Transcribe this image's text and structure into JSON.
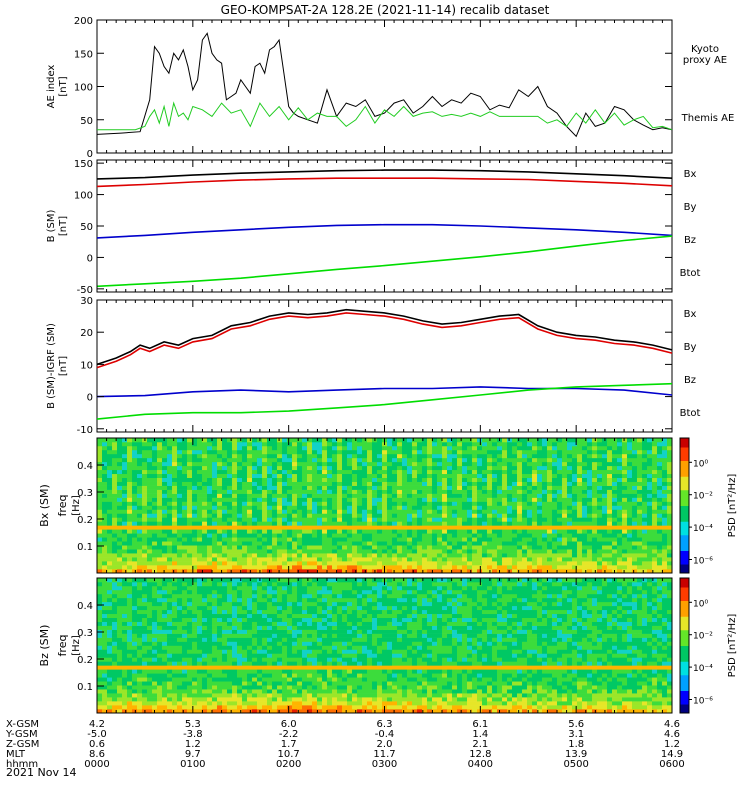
{
  "title": "GEO-KOMPSAT-2A 128.2E (2021-11-14) recalib dataset",
  "date_label": "2021 Nov 14",
  "colors": {
    "black": "#000000",
    "red": "#dd0000",
    "green": "#00dd00",
    "blue": "#0000cc",
    "kyoto": "#22cc22"
  },
  "ephemeris": {
    "labels": [
      "X-GSM",
      "Y-GSM",
      "Z-GSM",
      "MLT",
      "hhmm"
    ],
    "columns": [
      [
        "4.2",
        "-5.0",
        "0.6",
        "8.6",
        "0000"
      ],
      [
        "5.3",
        "-3.8",
        "1.2",
        "9.7",
        "0100"
      ],
      [
        "6.0",
        "-2.2",
        "1.7",
        "10.7",
        "0200"
      ],
      [
        "6.3",
        "-0.4",
        "2.0",
        "11.7",
        "0300"
      ],
      [
        "6.1",
        "1.4",
        "2.1",
        "12.8",
        "0400"
      ],
      [
        "5.6",
        "3.1",
        "1.8",
        "13.9",
        "0500"
      ],
      [
        "4.6",
        "4.6",
        "1.2",
        "14.9",
        "0600"
      ]
    ]
  },
  "chart_data": [
    {
      "type": "line",
      "panel": "ae",
      "ylabel": "AE index",
      "yunit": "[nT]",
      "ylim": [
        0,
        200
      ],
      "yticks": [
        "0",
        "50",
        "100",
        "150",
        "200"
      ],
      "xlim_hours": [
        0,
        6
      ],
      "legend": [
        {
          "label": "Kyoto proxy AE",
          "color": "#22cc22"
        },
        {
          "label": "Themis AE",
          "color": "#000000"
        }
      ],
      "series": [
        {
          "name": "Themis AE",
          "color": "#000000",
          "x": [
            0,
            0.25,
            0.45,
            0.55,
            0.6,
            0.65,
            0.7,
            0.75,
            0.8,
            0.85,
            0.9,
            0.95,
            1.0,
            1.05,
            1.1,
            1.15,
            1.2,
            1.25,
            1.3,
            1.35,
            1.4,
            1.45,
            1.5,
            1.55,
            1.6,
            1.65,
            1.7,
            1.75,
            1.8,
            1.85,
            1.9,
            1.95,
            2.0,
            2.05,
            2.1,
            2.2,
            2.3,
            2.4,
            2.5,
            2.6,
            2.7,
            2.8,
            2.9,
            3.0,
            3.1,
            3.2,
            3.3,
            3.4,
            3.5,
            3.6,
            3.7,
            3.8,
            3.9,
            4.0,
            4.1,
            4.2,
            4.3,
            4.4,
            4.5,
            4.6,
            4.7,
            4.8,
            4.9,
            5.0,
            5.1,
            5.2,
            5.3,
            5.4,
            5.5,
            5.6,
            5.7,
            5.8,
            5.9,
            6.0
          ],
          "y": [
            28,
            30,
            32,
            80,
            160,
            150,
            130,
            120,
            150,
            140,
            155,
            130,
            95,
            110,
            170,
            180,
            150,
            140,
            135,
            80,
            85,
            90,
            110,
            100,
            90,
            130,
            135,
            120,
            155,
            160,
            170,
            120,
            70,
            60,
            55,
            50,
            45,
            95,
            55,
            75,
            70,
            80,
            55,
            60,
            75,
            80,
            60,
            70,
            85,
            70,
            80,
            75,
            90,
            85,
            65,
            72,
            68,
            95,
            85,
            100,
            70,
            60,
            40,
            25,
            60,
            40,
            45,
            70,
            65,
            50,
            42,
            35,
            38,
            35
          ]
        },
        {
          "name": "Kyoto proxy AE",
          "color": "#22cc22",
          "x": [
            0,
            0.25,
            0.4,
            0.5,
            0.55,
            0.6,
            0.65,
            0.7,
            0.75,
            0.8,
            0.85,
            0.9,
            0.95,
            1.0,
            1.1,
            1.2,
            1.3,
            1.4,
            1.5,
            1.6,
            1.7,
            1.8,
            1.9,
            2.0,
            2.1,
            2.2,
            2.3,
            2.4,
            2.5,
            2.6,
            2.7,
            2.8,
            2.9,
            3.0,
            3.1,
            3.2,
            3.3,
            3.4,
            3.5,
            3.6,
            3.7,
            3.8,
            3.9,
            4.0,
            4.1,
            4.2,
            4.3,
            4.4,
            4.5,
            4.6,
            4.7,
            4.8,
            4.9,
            5.0,
            5.1,
            5.2,
            5.3,
            5.4,
            5.5,
            5.6,
            5.7,
            5.8,
            5.9,
            6.0
          ],
          "y": [
            35,
            35,
            35,
            40,
            55,
            65,
            45,
            70,
            40,
            75,
            55,
            60,
            50,
            70,
            65,
            55,
            75,
            60,
            65,
            40,
            75,
            55,
            70,
            50,
            68,
            50,
            60,
            55,
            55,
            40,
            50,
            70,
            45,
            65,
            55,
            70,
            55,
            60,
            62,
            55,
            58,
            55,
            60,
            55,
            62,
            55,
            55,
            55,
            55,
            55,
            45,
            50,
            40,
            60,
            45,
            65,
            45,
            60,
            42,
            50,
            55,
            38,
            40,
            35
          ]
        }
      ]
    },
    {
      "type": "line",
      "panel": "b_total",
      "ylabel": "B (SM)",
      "ylabel_sub": "T",
      "yunit": "[nT]",
      "ylim": [
        -55,
        155
      ],
      "yticks": [
        "-50",
        "0",
        "50",
        "100",
        "150"
      ],
      "xlim_hours": [
        0,
        6
      ],
      "legend": [
        {
          "label": "Bx",
          "color": "#0000cc"
        },
        {
          "label": "By",
          "color": "#00dd00"
        },
        {
          "label": "Bz",
          "color": "#dd0000"
        },
        {
          "label": "Btot",
          "color": "#000000"
        }
      ],
      "series": [
        {
          "name": "Bx",
          "color": "#0000cc",
          "x": [
            0,
            0.5,
            1,
            1.5,
            2,
            2.5,
            3,
            3.5,
            4,
            4.5,
            5,
            5.5,
            6
          ],
          "y": [
            31,
            35,
            40,
            44,
            48,
            51,
            52,
            52,
            50,
            47,
            44,
            40,
            35
          ]
        },
        {
          "name": "By",
          "color": "#00dd00",
          "x": [
            0,
            0.5,
            1,
            1.5,
            2,
            2.5,
            3,
            3.5,
            4,
            4.5,
            5,
            5.5,
            6
          ],
          "y": [
            -46,
            -42,
            -38,
            -33,
            -26,
            -19,
            -13,
            -6,
            1,
            9,
            18,
            27,
            34
          ]
        },
        {
          "name": "Bz",
          "color": "#dd0000",
          "x": [
            0,
            0.5,
            1,
            1.5,
            2,
            2.5,
            3,
            3.5,
            4,
            4.5,
            5,
            5.5,
            6
          ],
          "y": [
            113,
            116,
            120,
            123,
            125,
            126,
            126,
            126,
            125,
            124,
            121,
            118,
            114
          ]
        },
        {
          "name": "Btot",
          "color": "#000000",
          "x": [
            0,
            0.5,
            1,
            1.5,
            2,
            2.5,
            3,
            3.5,
            4,
            4.5,
            5,
            5.5,
            6
          ],
          "y": [
            125,
            127,
            131,
            134,
            136,
            138,
            139,
            139,
            138,
            136,
            133,
            130,
            126
          ]
        }
      ]
    },
    {
      "type": "line",
      "panel": "b_minus_igrf",
      "ylabel": "B (SM)-IGRF (SM)",
      "ylabel_sub": "T",
      "yunit": "[nT]",
      "ylim": [
        -11,
        30
      ],
      "yticks": [
        "-10",
        "0",
        "10",
        "20",
        "30"
      ],
      "xlim_hours": [
        0,
        6
      ],
      "legend": [
        {
          "label": "Bx",
          "color": "#0000cc"
        },
        {
          "label": "By",
          "color": "#00dd00"
        },
        {
          "label": "Bz",
          "color": "#dd0000"
        },
        {
          "label": "Btot",
          "color": "#000000"
        }
      ],
      "series": [
        {
          "name": "Bx",
          "color": "#0000cc",
          "x": [
            0,
            0.5,
            1,
            1.5,
            2,
            2.5,
            3,
            3.5,
            4,
            4.5,
            5,
            5.5,
            6
          ],
          "y": [
            0,
            0.3,
            1.5,
            2,
            1.5,
            2,
            2.5,
            2.5,
            3,
            2.5,
            2.5,
            2,
            0.5
          ]
        },
        {
          "name": "By",
          "color": "#00dd00",
          "x": [
            0,
            0.5,
            1,
            1.5,
            2,
            2.5,
            3,
            3.5,
            4,
            4.5,
            5,
            5.5,
            6
          ],
          "y": [
            -7,
            -5.5,
            -5,
            -5,
            -4.5,
            -3.5,
            -2.5,
            -1,
            0.5,
            2,
            3,
            3.5,
            4
          ]
        },
        {
          "name": "Bz",
          "color": "#dd0000",
          "x": [
            0,
            0.2,
            0.35,
            0.45,
            0.55,
            0.7,
            0.85,
            1.0,
            1.2,
            1.4,
            1.6,
            1.8,
            2.0,
            2.2,
            2.4,
            2.6,
            2.8,
            3.0,
            3.2,
            3.4,
            3.6,
            3.8,
            4.0,
            4.2,
            4.4,
            4.6,
            4.8,
            5.0,
            5.2,
            5.4,
            5.6,
            5.8,
            6.0
          ],
          "y": [
            9,
            11,
            13,
            15,
            14,
            16,
            15,
            17,
            18,
            21,
            22,
            24,
            25,
            24.5,
            25,
            26,
            25.5,
            25,
            24,
            22.5,
            21.5,
            22,
            23,
            24,
            24.5,
            21,
            19,
            18,
            17.5,
            16.5,
            16,
            15,
            13.5
          ]
        },
        {
          "name": "Btot",
          "color": "#000000",
          "x": [
            0,
            0.2,
            0.35,
            0.45,
            0.55,
            0.7,
            0.85,
            1.0,
            1.2,
            1.4,
            1.6,
            1.8,
            2.0,
            2.2,
            2.4,
            2.6,
            2.8,
            3.0,
            3.2,
            3.4,
            3.6,
            3.8,
            4.0,
            4.2,
            4.4,
            4.6,
            4.8,
            5.0,
            5.2,
            5.4,
            5.6,
            5.8,
            6.0
          ],
          "y": [
            10,
            12,
            14,
            16,
            15,
            17,
            16,
            18,
            19,
            22,
            23,
            25,
            26,
            25.5,
            26,
            27,
            26.5,
            26,
            25,
            23.5,
            22.5,
            23,
            24,
            25,
            25.5,
            22,
            20,
            19,
            18.5,
            17.5,
            17,
            16,
            14.5
          ]
        }
      ]
    },
    {
      "type": "heatmap",
      "panel": "bx_spectrogram",
      "ylabel": "Bx (SM)",
      "ylabel2": "freq",
      "yunit": "[Hz]",
      "ylim": [
        0,
        0.5
      ],
      "yticks": [
        "0.1",
        "0.2",
        "0.3",
        "0.4"
      ],
      "xlim_hours": [
        0,
        6
      ],
      "colorbar_label": "PSD [nT²/Hz]",
      "colorbar_ticks": [
        "10⁰",
        "10⁻²",
        "10⁻⁴",
        "10⁻⁶"
      ]
    },
    {
      "type": "heatmap",
      "panel": "bz_spectrogram",
      "ylabel": "Bz (SM)",
      "ylabel2": "freq",
      "yunit": "[Hz]",
      "ylim": [
        0,
        0.5
      ],
      "yticks": [
        "0.1",
        "0.2",
        "0.3",
        "0.4"
      ],
      "xlim_hours": [
        0,
        6
      ],
      "colorbar_label": "PSD [nT²/Hz]",
      "colorbar_ticks": [
        "10⁰",
        "10⁻²",
        "10⁻⁴",
        "10⁻⁶"
      ]
    }
  ]
}
